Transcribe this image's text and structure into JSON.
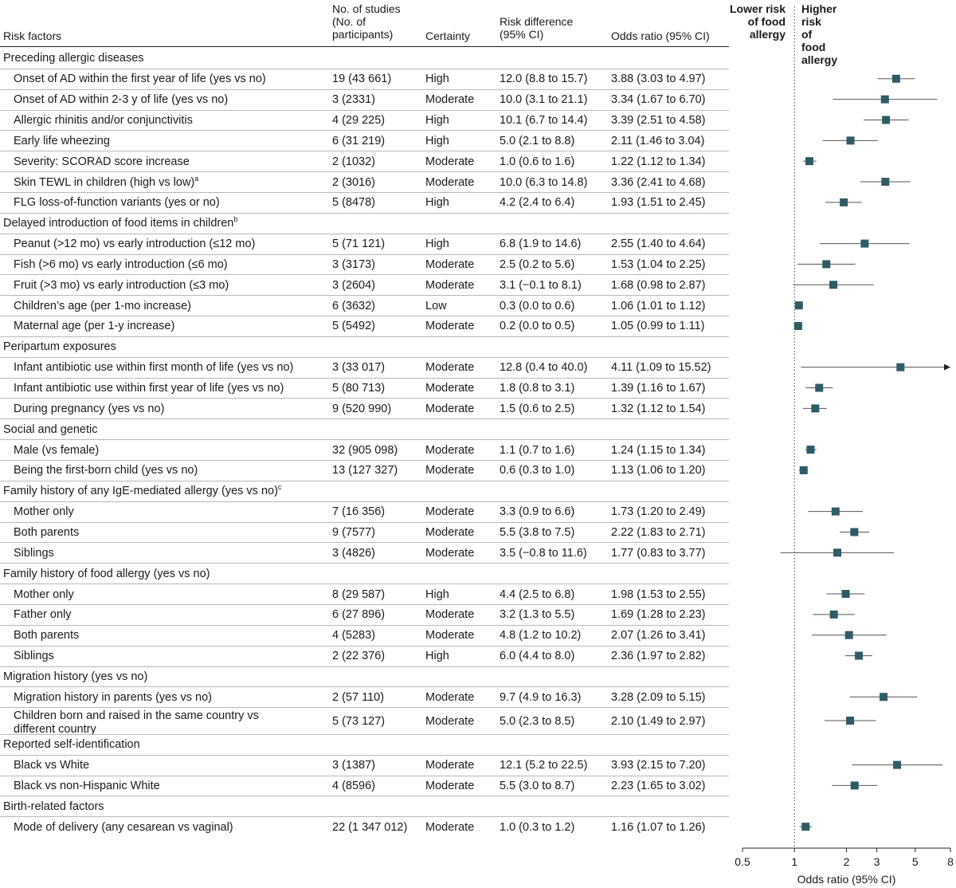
{
  "headers": {
    "risk_factors": "Risk factors",
    "studies": "No. of studies\n(No. of\nparticipants)",
    "certainty": "Certainty",
    "risk_difference": "Risk difference\n(95% CI)",
    "odds_ratio": "Odds ratio (95% CI)",
    "lower": "Lower risk\nof food\nallergy",
    "higher": "Higher risk\nof food\nallergy"
  },
  "rows": [
    {
      "kind": "group",
      "label": "Preceding allergic diseases"
    },
    {
      "kind": "item",
      "label": "Onset of AD within the first year of life (yes vs no)",
      "studies": "19 (43 661)",
      "certainty": "High",
      "rd": "12.0 (8.8 to 15.7)",
      "or_text": "3.88 (3.03 to 4.97)",
      "or": 3.88,
      "lo": 3.03,
      "hi": 4.97
    },
    {
      "kind": "item",
      "label": "Onset of AD within 2-3 y of life (yes vs no)",
      "studies": "3 (2331)",
      "certainty": "Moderate",
      "rd": "10.0 (3.1 to 21.1)",
      "or_text": "3.34 (1.67 to 6.70)",
      "or": 3.34,
      "lo": 1.67,
      "hi": 6.7
    },
    {
      "kind": "item",
      "label": "Allergic rhinitis and/or conjunctivitis",
      "studies": "4 (29 225)",
      "certainty": "High",
      "rd": "10.1 (6.7 to 14.4)",
      "or_text": "3.39 (2.51 to 4.58)",
      "or": 3.39,
      "lo": 2.51,
      "hi": 4.58
    },
    {
      "kind": "item",
      "label": "Early life wheezing",
      "studies": "6 (31 219)",
      "certainty": "High",
      "rd": "5.0 (2.1 to 8.8)",
      "or_text": "2.11 (1.46 to 3.04)",
      "or": 2.11,
      "lo": 1.46,
      "hi": 3.04
    },
    {
      "kind": "item",
      "label": "Severity: SCORAD score increase",
      "studies": "2 (1032)",
      "certainty": "Moderate",
      "rd": "1.0 (0.6 to 1.6)",
      "or_text": "1.22 (1.12 to 1.34)",
      "or": 1.22,
      "lo": 1.12,
      "hi": 1.34
    },
    {
      "kind": "item",
      "label": "Skin TEWL in children (high vs low)",
      "sup": "a",
      "studies": "2 (3016)",
      "certainty": "Moderate",
      "rd": "10.0 (6.3 to 14.8)",
      "or_text": "3.36 (2.41 to 4.68)",
      "or": 3.36,
      "lo": 2.41,
      "hi": 4.68
    },
    {
      "kind": "item",
      "label": "FLG loss-of-function variants (yes or no)",
      "studies": "5 (8478)",
      "certainty": "High",
      "rd": "4.2 (2.4 to 6.4)",
      "or_text": "1.93 (1.51 to 2.45)",
      "or": 1.93,
      "lo": 1.51,
      "hi": 2.45
    },
    {
      "kind": "group",
      "label": "Delayed introduction of food items in children",
      "sup": "b"
    },
    {
      "kind": "item",
      "label": "Peanut (>12 mo) vs early introduction (≤12 mo)",
      "studies": "5 (71 121)",
      "certainty": "High",
      "rd": "6.8 (1.9 to 14.6)",
      "or_text": "2.55 (1.40 to 4.64)",
      "or": 2.55,
      "lo": 1.4,
      "hi": 4.64
    },
    {
      "kind": "item",
      "label": "Fish (>6 mo) vs early introduction (≤6 mo)",
      "studies": "3 (3173)",
      "certainty": "Moderate",
      "rd": "2.5 (0.2 to 5.6)",
      "or_text": "1.53 (1.04 to 2.25)",
      "or": 1.53,
      "lo": 1.04,
      "hi": 2.25
    },
    {
      "kind": "item",
      "label": "Fruit (>3 mo) vs early introduction (≤3 mo)",
      "studies": "3 (2604)",
      "certainty": "Moderate",
      "rd": "3.1 (−0.1 to 8.1)",
      "or_text": "1.68 (0.98 to 2.87)",
      "or": 1.68,
      "lo": 0.98,
      "hi": 2.87
    },
    {
      "kind": "item",
      "label": "Children’s age (per 1-mo increase)",
      "studies": "6 (3632)",
      "certainty": "Low",
      "rd": "0.3 (0.0 to 0.6)",
      "or_text": "1.06 (1.01 to 1.12)",
      "or": 1.06,
      "lo": 1.01,
      "hi": 1.12
    },
    {
      "kind": "item",
      "label": "Maternal age (per 1-y increase)",
      "studies": "5 (5492)",
      "certainty": "Moderate",
      "rd": "0.2 (0.0 to 0.5)",
      "or_text": "1.05 (0.99 to 1.11)",
      "or": 1.05,
      "lo": 0.99,
      "hi": 1.11
    },
    {
      "kind": "group",
      "label": "Peripartum exposures"
    },
    {
      "kind": "item",
      "label": "Infant antibiotic use within first month of life (yes vs no)",
      "studies": "3 (33 017)",
      "certainty": "Moderate",
      "rd": "12.8 (0.4 to 40.0)",
      "or_text": "4.11 (1.09 to 15.52)",
      "or": 4.11,
      "lo": 1.09,
      "hi": 15.52
    },
    {
      "kind": "item",
      "label": "Infant antibiotic use within first year of life (yes vs no)",
      "studies": "5 (80 713)",
      "certainty": "Moderate",
      "rd": "1.8 (0.8 to 3.1)",
      "or_text": "1.39 (1.16 to 1.67)",
      "or": 1.39,
      "lo": 1.16,
      "hi": 1.67
    },
    {
      "kind": "item",
      "label": "During pregnancy (yes vs no)",
      "studies": "9 (520 990)",
      "certainty": "Moderate",
      "rd": "1.5 (0.6 to 2.5)",
      "or_text": "1.32 (1.12 to 1.54)",
      "or": 1.32,
      "lo": 1.12,
      "hi": 1.54
    },
    {
      "kind": "group",
      "label": "Social and genetic"
    },
    {
      "kind": "item",
      "label": "Male (vs female)",
      "studies": "32 (905 098)",
      "certainty": "Moderate",
      "rd": "1.1 (0.7 to 1.6)",
      "or_text": "1.24 (1.15 to 1.34)",
      "or": 1.24,
      "lo": 1.15,
      "hi": 1.34
    },
    {
      "kind": "item",
      "label": "Being the first-born child (yes vs no)",
      "studies": "13 (127 327)",
      "certainty": "Moderate",
      "rd": "0.6 (0.3 to 1.0)",
      "or_text": "1.13 (1.06 to 1.20)",
      "or": 1.13,
      "lo": 1.06,
      "hi": 1.2
    },
    {
      "kind": "group",
      "label": "Family history of any IgE-mediated allergy (yes vs no)",
      "sup": "c"
    },
    {
      "kind": "item",
      "label": "Mother only",
      "studies": "7 (16 356)",
      "certainty": "Moderate",
      "rd": "3.3 (0.9 to 6.6)",
      "or_text": "1.73 (1.20 to 2.49)",
      "or": 1.73,
      "lo": 1.2,
      "hi": 2.49
    },
    {
      "kind": "item",
      "label": "Both parents",
      "studies": "9 (7577)",
      "certainty": "Moderate",
      "rd": "5.5 (3.8 to 7.5)",
      "or_text": "2.22 (1.83 to 2.71)",
      "or": 2.22,
      "lo": 1.83,
      "hi": 2.71
    },
    {
      "kind": "item",
      "label": "Siblings",
      "studies": "3 (4826)",
      "certainty": "Moderate",
      "rd": "3.5 (−0.8 to 11.6)",
      "or_text": "1.77 (0.83 to 3.77)",
      "or": 1.77,
      "lo": 0.83,
      "hi": 3.77
    },
    {
      "kind": "group",
      "label": "Family history of food allergy (yes vs no)"
    },
    {
      "kind": "item",
      "label": "Mother only",
      "studies": "8 (29 587)",
      "certainty": "High",
      "rd": "4.4 (2.5 to 6.8)",
      "or_text": "1.98 (1.53 to 2.55)",
      "or": 1.98,
      "lo": 1.53,
      "hi": 2.55
    },
    {
      "kind": "item",
      "label": "Father only",
      "studies": "6 (27 896)",
      "certainty": "Moderate",
      "rd": "3.2 (1.3 to 5.5)",
      "or_text": "1.69 (1.28 to 2.23)",
      "or": 1.69,
      "lo": 1.28,
      "hi": 2.23
    },
    {
      "kind": "item",
      "label": "Both parents",
      "studies": "4 (5283)",
      "certainty": "Moderate",
      "rd": "4.8 (1.2 to 10.2)",
      "or_text": "2.07 (1.26 to 3.41)",
      "or": 2.07,
      "lo": 1.26,
      "hi": 3.41
    },
    {
      "kind": "item",
      "label": "Siblings",
      "studies": "2 (22 376)",
      "certainty": "High",
      "rd": "6.0 (4.4 to 8.0)",
      "or_text": "2.36 (1.97 to 2.82)",
      "or": 2.36,
      "lo": 1.97,
      "hi": 2.82
    },
    {
      "kind": "group",
      "label": "Migration history (yes vs no)"
    },
    {
      "kind": "item",
      "label": "Migration history in parents (yes vs no)",
      "studies": "2 (57 110)",
      "certainty": "Moderate",
      "rd": "9.7 (4.9 to 16.3)",
      "or_text": "3.28 (2.09 to 5.15)",
      "or": 3.28,
      "lo": 2.09,
      "hi": 5.15
    },
    {
      "kind": "item",
      "label": "Children born and raised in the same country vs\n    different country",
      "studies": "5 (73 127)",
      "certainty": "Moderate",
      "rd": "5.0 (2.3 to 8.5)",
      "or_text": "2.10 (1.49 to 2.97)",
      "or": 2.1,
      "lo": 1.49,
      "hi": 2.97
    },
    {
      "kind": "group",
      "label": "Reported self-identification"
    },
    {
      "kind": "item",
      "label": "Black vs White",
      "studies": "3 (1387)",
      "certainty": "Moderate",
      "rd": "12.1 (5.2 to 22.5)",
      "or_text": "3.93 (2.15 to 7.20)",
      "or": 3.93,
      "lo": 2.15,
      "hi": 7.2
    },
    {
      "kind": "item",
      "label": "Black vs non-Hispanic White",
      "studies": "4 (8596)",
      "certainty": "Moderate",
      "rd": "5.5 (3.0 to 8.7)",
      "or_text": "2.23 (1.65 to 3.02)",
      "or": 2.23,
      "lo": 1.65,
      "hi": 3.02
    },
    {
      "kind": "group",
      "label": "Birth-related factors"
    },
    {
      "kind": "item",
      "label": "Mode of delivery (any cesarean vs vaginal)",
      "studies": "22 (1 347 012)",
      "certainty": "Moderate",
      "rd": "1.0 (0.3 to 1.2)",
      "or_text": "1.16 (1.07 to 1.26)",
      "or": 1.16,
      "lo": 1.07,
      "hi": 1.26
    }
  ],
  "chart_data": {
    "type": "scatter",
    "xlabel": "Odds ratio (95% CI)",
    "x_scale": "log",
    "xlim": [
      0.5,
      8
    ],
    "ticks": [
      0.5,
      1,
      2,
      3,
      5,
      8
    ],
    "reference_line": 1,
    "marker_color": "#2f5b66"
  }
}
